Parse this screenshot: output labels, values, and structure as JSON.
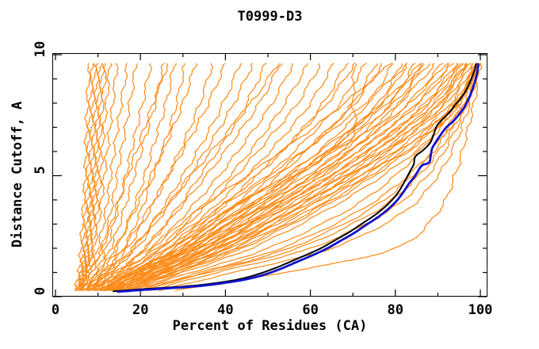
{
  "chart_data": {
    "type": "line",
    "title": "T0999-D3",
    "xlabel": "Percent of Residues (CA)",
    "ylabel": "Distance Cutoff, A",
    "xlim": [
      0,
      101.5
    ],
    "ylim": [
      0,
      10.1
    ],
    "grid": "off",
    "legend": "none",
    "x_major_ticks": [
      0,
      20,
      40,
      60,
      80,
      100
    ],
    "x_minor_ticks": [
      10,
      30,
      50,
      70,
      90
    ],
    "y_major_ticks": [
      0,
      5,
      10
    ],
    "y_minor_ticks": [
      1,
      2,
      3,
      4,
      6,
      7,
      8,
      9
    ],
    "colors": {
      "background": "#FFFFFF",
      "axis": "#000000",
      "model_family_orange": "#FF8C1A",
      "highlight_blue": "#1111CC",
      "highlight_black": "#000000"
    },
    "series": [
      {
        "name": "highlighted-model-black",
        "color_key": "highlight_black",
        "width": 2,
        "points": [
          [
            13.5,
            0.22
          ],
          [
            18,
            0.28
          ],
          [
            24,
            0.35
          ],
          [
            30,
            0.42
          ],
          [
            35,
            0.5
          ],
          [
            40,
            0.62
          ],
          [
            44,
            0.75
          ],
          [
            48,
            0.95
          ],
          [
            52,
            1.2
          ],
          [
            56,
            1.5
          ],
          [
            60,
            1.8
          ],
          [
            63,
            2.05
          ],
          [
            66,
            2.35
          ],
          [
            69,
            2.65
          ],
          [
            72,
            3.0
          ],
          [
            75,
            3.35
          ],
          [
            77.5,
            3.7
          ],
          [
            79.5,
            4.05
          ],
          [
            81,
            4.4
          ],
          [
            82.3,
            4.8
          ],
          [
            83.5,
            5.2
          ],
          [
            84.3,
            5.45
          ],
          [
            84.5,
            5.7
          ],
          [
            85,
            5.85
          ],
          [
            86.5,
            6.05
          ],
          [
            88.2,
            6.36
          ],
          [
            89,
            6.7
          ],
          [
            89.8,
            7.07
          ],
          [
            91.2,
            7.35
          ],
          [
            92.6,
            7.6
          ],
          [
            94.2,
            7.95
          ],
          [
            95.6,
            8.25
          ],
          [
            96.7,
            8.55
          ],
          [
            97.5,
            8.85
          ],
          [
            98.2,
            9.15
          ],
          [
            98.7,
            9.4
          ],
          [
            99,
            9.65
          ]
        ]
      },
      {
        "name": "highlighted-model-blue",
        "color_key": "highlight_blue",
        "width": 2.8,
        "points": [
          [
            14.5,
            0.2
          ],
          [
            19,
            0.26
          ],
          [
            25,
            0.33
          ],
          [
            31,
            0.4
          ],
          [
            36,
            0.48
          ],
          [
            41,
            0.6
          ],
          [
            45,
            0.72
          ],
          [
            49,
            0.9
          ],
          [
            53,
            1.15
          ],
          [
            57,
            1.45
          ],
          [
            61,
            1.75
          ],
          [
            64,
            2.0
          ],
          [
            67,
            2.3
          ],
          [
            70,
            2.6
          ],
          [
            73,
            2.95
          ],
          [
            76,
            3.3
          ],
          [
            78.5,
            3.65
          ],
          [
            80.5,
            4.0
          ],
          [
            82,
            4.35
          ],
          [
            83.3,
            4.7
          ],
          [
            84.5,
            4.95
          ],
          [
            85.4,
            5.21
          ],
          [
            86.3,
            5.43
          ],
          [
            87.9,
            5.54
          ],
          [
            88.3,
            5.8
          ],
          [
            88.6,
            6.1
          ],
          [
            89.2,
            6.3
          ],
          [
            90.5,
            6.65
          ],
          [
            92,
            7.0
          ],
          [
            93.6,
            7.25
          ],
          [
            95.1,
            7.56
          ],
          [
            96.3,
            7.85
          ],
          [
            97.3,
            8.2
          ],
          [
            98.2,
            8.6
          ],
          [
            98.9,
            9.0
          ],
          [
            99.3,
            9.3
          ],
          [
            99.5,
            9.65
          ]
        ]
      },
      {
        "name": "server-models-orange",
        "color_key": "model_family_orange",
        "width": 1.25,
        "wiggle_amplitude": 0.55,
        "y_samples": [
          0.25,
          1,
          2,
          3.5,
          5,
          6.5,
          8,
          9.65
        ],
        "curves_x": [
          [
            4.5,
            5.5,
            6,
            6.5,
            7,
            7.2,
            7.5,
            8
          ],
          [
            5,
            6,
            6.5,
            7,
            7.5,
            7.8,
            8.2,
            8.7
          ],
          [
            5,
            6.2,
            7,
            7.6,
            8,
            8.4,
            8.8,
            9.3
          ],
          [
            5.5,
            6.5,
            7.3,
            8,
            8.5,
            8.9,
            9.4,
            10
          ],
          [
            5.5,
            6.8,
            7.6,
            8.4,
            9,
            9.5,
            10,
            10.6
          ],
          [
            6,
            7,
            8,
            8.8,
            9.4,
            9.9,
            10.5,
            11.2
          ],
          [
            6,
            7.2,
            8.3,
            9.2,
            9.9,
            10.5,
            11.1,
            11.9
          ],
          [
            6.5,
            7.6,
            8.8,
            9.8,
            10.6,
            11.2,
            12,
            12.8
          ],
          [
            5,
            7,
            9,
            10.5,
            11.5,
            12.5,
            13.5,
            14.5
          ],
          [
            6,
            8,
            10,
            11.8,
            13,
            14.2,
            15.5,
            17
          ],
          [
            6,
            8.5,
            11,
            13,
            14.5,
            16,
            17.5,
            19
          ],
          [
            7,
            9.5,
            12,
            14.5,
            16.5,
            18.5,
            20.5,
            22.5
          ],
          [
            7,
            10,
            13,
            16,
            18.5,
            21,
            23.5,
            25.5
          ],
          [
            8,
            11,
            14.5,
            18,
            21,
            23.5,
            26,
            28
          ],
          [
            5.5,
            8,
            11,
            14,
            17,
            20,
            23,
            26.5
          ],
          [
            8,
            12,
            16,
            20,
            23,
            26,
            28.5,
            30.5
          ],
          [
            6,
            10,
            14,
            18.5,
            22.5,
            26.5,
            30,
            33
          ],
          [
            8,
            12,
            17,
            22,
            26.5,
            30.5,
            34,
            37
          ],
          [
            7,
            11,
            16,
            21.5,
            26.5,
            31.5,
            36,
            40
          ],
          [
            9,
            13,
            18.5,
            24.5,
            30,
            35,
            39.5,
            43.5
          ],
          [
            8,
            13,
            19,
            25.5,
            31.5,
            37,
            42,
            46.5
          ],
          [
            10,
            15,
            21,
            28,
            34,
            40,
            45,
            49.5
          ],
          [
            9,
            14.5,
            21,
            28.5,
            35.5,
            42,
            48,
            53
          ],
          [
            10,
            16,
            23,
            31,
            38.5,
            45,
            51,
            56
          ],
          [
            11,
            17,
            24.5,
            33,
            41,
            48,
            54,
            59.5
          ],
          [
            7,
            12,
            18,
            25,
            32,
            39,
            46,
            52.5
          ],
          [
            10,
            17,
            25,
            34,
            42.5,
            50,
            57,
            62.5
          ],
          [
            11,
            18,
            26.5,
            36,
            45,
            53,
            60,
            65.5
          ],
          [
            12,
            19,
            28,
            38,
            47.5,
            56,
            63,
            68.5
          ],
          [
            10,
            18,
            27,
            37.5,
            47,
            56,
            64,
            70.5
          ],
          [
            12,
            20,
            29.5,
            40,
            50,
            59,
            67,
            73
          ],
          [
            13,
            21,
            31,
            42,
            52.5,
            62,
            70,
            75.5
          ],
          [
            11,
            19,
            29,
            40.5,
            51.5,
            61.5,
            70.5,
            77
          ],
          [
            13,
            22,
            32.5,
            44,
            55,
            65,
            73.5,
            79.5
          ],
          [
            14,
            23,
            34,
            46,
            57.5,
            67.5,
            76,
            81.5
          ],
          [
            12,
            21,
            32,
            44.5,
            56.5,
            67,
            76.5,
            83
          ],
          [
            14,
            24,
            35.5,
            48,
            60,
            70.5,
            79,
            84.5
          ],
          [
            15,
            25,
            37,
            50,
            62,
            72.5,
            81,
            86
          ],
          [
            9,
            15,
            24,
            37,
            50,
            62,
            73,
            83
          ],
          [
            8,
            14,
            22,
            33,
            45,
            57,
            68,
            79
          ],
          [
            10,
            18,
            28,
            40,
            55,
            69.5,
            70,
            70.3
          ],
          [
            12,
            20,
            30,
            43,
            56,
            68,
            78,
            87
          ],
          [
            9,
            16,
            26,
            40,
            54,
            66,
            77,
            86
          ],
          [
            10,
            18,
            29,
            43,
            57,
            69,
            79.5,
            88
          ],
          [
            11,
            19,
            31,
            45,
            59,
            71,
            81,
            89.5
          ],
          [
            12,
            20,
            32,
            47,
            61,
            73,
            83,
            91
          ],
          [
            10,
            19,
            31,
            46,
            60.5,
            73,
            83.5,
            92
          ],
          [
            13,
            22,
            34,
            49,
            63,
            75,
            85,
            93
          ],
          [
            11,
            20,
            33,
            48,
            62.5,
            75,
            85.5,
            93.5
          ],
          [
            14,
            23,
            36,
            51,
            65,
            77,
            87,
            94.5
          ],
          [
            12,
            21,
            34,
            50,
            64.5,
            77,
            87.5,
            95
          ],
          [
            14,
            24,
            37,
            53,
            67,
            79,
            89,
            96
          ],
          [
            13,
            23,
            36,
            52,
            66.5,
            79,
            89.5,
            96.5
          ],
          [
            15,
            25,
            38,
            54,
            68,
            80.5,
            90.5,
            97
          ],
          [
            16,
            26,
            40,
            56,
            70,
            82,
            91.5,
            97.5
          ],
          [
            14,
            24,
            38,
            55,
            69.5,
            82,
            92,
            98
          ],
          [
            16,
            27,
            41,
            57.5,
            71.5,
            83.5,
            93,
            98.5
          ],
          [
            17,
            28,
            42,
            59,
            73,
            85,
            94,
            99
          ],
          [
            15,
            26,
            40,
            57,
            72,
            84.5,
            94,
            99.3
          ],
          [
            17,
            29,
            44,
            61,
            75,
            86.5,
            95,
            99.6
          ],
          [
            13,
            22,
            35,
            50.5,
            65,
            77.5,
            88,
            95.5
          ],
          [
            15,
            26,
            39,
            55,
            69,
            81,
            90.5,
            96.8
          ],
          [
            16,
            28,
            43,
            60,
            74,
            86,
            94.5,
            99.4
          ],
          [
            18,
            30,
            46,
            63,
            77,
            88,
            95,
            99.7
          ],
          [
            18,
            32,
            50,
            68,
            80,
            88,
            94.5,
            99
          ],
          [
            20,
            35,
            55,
            73,
            84,
            91,
            96,
            99.5
          ],
          [
            19,
            34,
            53,
            71,
            83,
            90.5,
            95.5,
            99.2
          ],
          [
            20,
            36,
            57,
            75,
            85.5,
            92,
            96.5,
            99.5
          ],
          [
            22,
            38,
            60,
            78,
            87.5,
            93,
            97,
            99.8
          ],
          [
            24,
            42,
            65,
            82,
            90,
            94.5,
            97.5,
            100
          ],
          [
            28,
            54,
            80,
            90,
            94,
            96.5,
            98.5,
            100
          ]
        ]
      }
    ]
  }
}
